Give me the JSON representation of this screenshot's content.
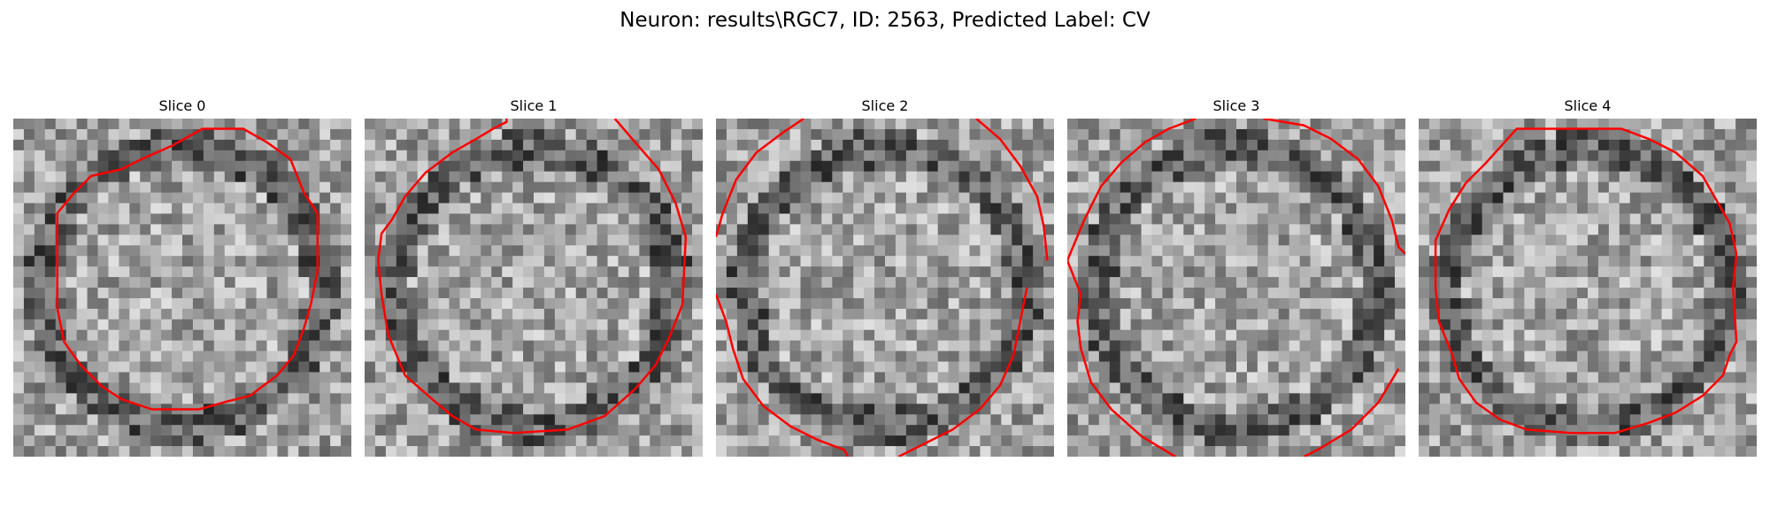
{
  "figure": {
    "title": "Neuron: results\\RGC7, ID: 2563, Predicted Label: CV"
  },
  "slices": [
    {
      "title": "Slice 0",
      "seed": 11,
      "contour": [
        [
          0.56,
          0.03
        ],
        [
          0.68,
          0.03
        ],
        [
          0.75,
          0.07
        ],
        [
          0.82,
          0.12
        ],
        [
          0.86,
          0.22
        ],
        [
          0.9,
          0.28
        ],
        [
          0.9,
          0.45
        ],
        [
          0.88,
          0.55
        ],
        [
          0.86,
          0.62
        ],
        [
          0.83,
          0.7
        ],
        [
          0.78,
          0.76
        ],
        [
          0.7,
          0.82
        ],
        [
          0.62,
          0.84
        ],
        [
          0.55,
          0.86
        ],
        [
          0.41,
          0.86
        ],
        [
          0.32,
          0.83
        ],
        [
          0.26,
          0.79
        ],
        [
          0.2,
          0.73
        ],
        [
          0.15,
          0.66
        ],
        [
          0.13,
          0.56
        ],
        [
          0.13,
          0.45
        ],
        [
          0.13,
          0.28
        ],
        [
          0.18,
          0.22
        ],
        [
          0.23,
          0.17
        ],
        [
          0.32,
          0.15
        ],
        [
          0.38,
          0.12
        ],
        [
          0.47,
          0.08
        ]
      ],
      "closed": true,
      "contourColor": "#ff0000",
      "colormap": "gray"
    },
    {
      "title": "Slice 1",
      "seed": 23,
      "contour": [
        [
          0.08,
          0.3
        ],
        [
          0.12,
          0.23
        ],
        [
          0.18,
          0.16
        ],
        [
          0.26,
          0.1
        ],
        [
          0.33,
          0.06
        ],
        [
          0.38,
          0.03
        ],
        [
          0.42,
          0.01
        ],
        [
          0.42,
          0.0
        ]
      ],
      "contour2": [
        [
          0.74,
          0.0
        ],
        [
          0.8,
          0.07
        ],
        [
          0.87,
          0.15
        ],
        [
          0.92,
          0.25
        ],
        [
          0.95,
          0.35
        ],
        [
          0.94,
          0.55
        ],
        [
          0.9,
          0.65
        ],
        [
          0.86,
          0.73
        ],
        [
          0.8,
          0.8
        ],
        [
          0.71,
          0.88
        ],
        [
          0.6,
          0.92
        ],
        [
          0.44,
          0.93
        ],
        [
          0.33,
          0.92
        ],
        [
          0.26,
          0.88
        ],
        [
          0.2,
          0.83
        ],
        [
          0.12,
          0.76
        ],
        [
          0.07,
          0.64
        ],
        [
          0.05,
          0.52
        ],
        [
          0.04,
          0.42
        ],
        [
          0.05,
          0.34
        ],
        [
          0.08,
          0.3
        ]
      ],
      "closed": false,
      "contourColor": "#ff0000",
      "colormap": "gray"
    },
    {
      "title": "Slice 2",
      "seed": 37,
      "contour": [
        [
          0.26,
          0.0
        ],
        [
          0.2,
          0.04
        ],
        [
          0.12,
          0.1
        ],
        [
          0.06,
          0.18
        ],
        [
          0.02,
          0.28
        ],
        [
          0.0,
          0.35
        ]
      ],
      "contour2": [
        [
          0.77,
          0.0
        ],
        [
          0.84,
          0.06
        ],
        [
          0.9,
          0.14
        ],
        [
          0.95,
          0.23
        ],
        [
          0.97,
          0.32
        ],
        [
          0.98,
          0.42
        ]
      ],
      "contour3": [
        [
          0.0,
          0.52
        ],
        [
          0.03,
          0.6
        ],
        [
          0.05,
          0.68
        ],
        [
          0.08,
          0.77
        ],
        [
          0.14,
          0.85
        ],
        [
          0.22,
          0.91
        ],
        [
          0.3,
          0.95
        ],
        [
          0.38,
          0.98
        ],
        [
          0.39,
          1.0
        ]
      ],
      "contour4": [
        [
          0.54,
          1.0
        ],
        [
          0.62,
          0.96
        ],
        [
          0.7,
          0.92
        ],
        [
          0.78,
          0.86
        ],
        [
          0.84,
          0.79
        ],
        [
          0.88,
          0.7
        ],
        [
          0.9,
          0.6
        ],
        [
          0.92,
          0.5
        ]
      ],
      "closed": false,
      "contourColor": "#ff0000",
      "colormap": "gray"
    },
    {
      "title": "Slice 3",
      "seed": 53,
      "contour": [
        [
          0.0,
          0.42
        ],
        [
          0.05,
          0.3
        ],
        [
          0.1,
          0.2
        ],
        [
          0.16,
          0.13
        ],
        [
          0.23,
          0.07
        ],
        [
          0.3,
          0.03
        ],
        [
          0.38,
          0.0
        ]
      ],
      "contour2": [
        [
          0.58,
          0.0
        ],
        [
          0.7,
          0.02
        ],
        [
          0.78,
          0.06
        ],
        [
          0.86,
          0.12
        ],
        [
          0.92,
          0.2
        ],
        [
          0.96,
          0.3
        ],
        [
          0.98,
          0.38
        ],
        [
          1.0,
          0.4
        ]
      ],
      "contour3": [
        [
          0.98,
          0.74
        ],
        [
          0.92,
          0.84
        ],
        [
          0.84,
          0.92
        ],
        [
          0.74,
          0.98
        ],
        [
          0.7,
          1.0
        ]
      ],
      "contour4": [
        [
          0.32,
          1.0
        ],
        [
          0.22,
          0.94
        ],
        [
          0.13,
          0.86
        ],
        [
          0.07,
          0.78
        ],
        [
          0.04,
          0.68
        ],
        [
          0.03,
          0.6
        ],
        [
          0.04,
          0.52
        ],
        [
          0.0,
          0.42
        ]
      ],
      "closed": false,
      "contourColor": "#ff0000",
      "colormap": "gray"
    },
    {
      "title": "Slice 4",
      "seed": 71,
      "contour": [
        [
          0.29,
          0.03
        ],
        [
          0.6,
          0.03
        ],
        [
          0.68,
          0.06
        ],
        [
          0.76,
          0.1
        ],
        [
          0.84,
          0.17
        ],
        [
          0.88,
          0.24
        ],
        [
          0.92,
          0.31
        ],
        [
          0.94,
          0.4
        ],
        [
          0.93,
          0.5
        ],
        [
          0.94,
          0.66
        ],
        [
          0.92,
          0.7
        ],
        [
          0.9,
          0.76
        ],
        [
          0.84,
          0.82
        ],
        [
          0.76,
          0.87
        ],
        [
          0.68,
          0.9
        ],
        [
          0.58,
          0.93
        ],
        [
          0.45,
          0.93
        ],
        [
          0.32,
          0.92
        ],
        [
          0.24,
          0.89
        ],
        [
          0.17,
          0.84
        ],
        [
          0.12,
          0.77
        ],
        [
          0.1,
          0.7
        ],
        [
          0.06,
          0.6
        ],
        [
          0.05,
          0.5
        ],
        [
          0.05,
          0.36
        ],
        [
          0.09,
          0.27
        ],
        [
          0.14,
          0.19
        ],
        [
          0.2,
          0.13
        ]
      ],
      "closed": true,
      "contourColor": "#ff0000",
      "colormap": "gray"
    }
  ]
}
